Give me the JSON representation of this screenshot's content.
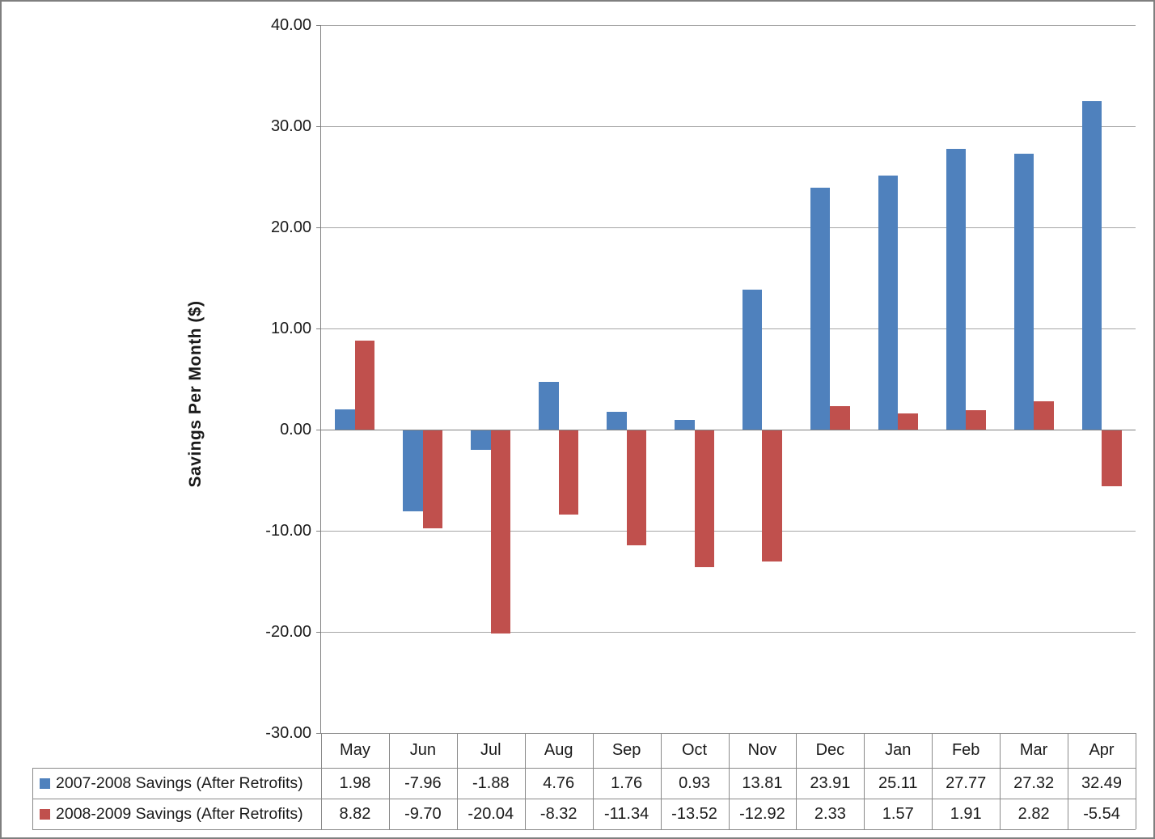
{
  "window": {
    "background": "#FFFFFF",
    "frame_color": "#7F7F7F"
  },
  "chart_data": {
    "type": "bar",
    "title": "",
    "xlabel": "",
    "ylabel": "Savings Per Month ($)",
    "categories": [
      "May",
      "Jun",
      "Jul",
      "Aug",
      "Sep",
      "Oct",
      "Nov",
      "Dec",
      "Jan",
      "Feb",
      "Mar",
      "Apr"
    ],
    "series": [
      {
        "name": "2007-2008 Savings (After Retrofits)",
        "color": "#4F81BD",
        "values": [
          1.98,
          -7.96,
          -1.88,
          4.76,
          1.76,
          0.93,
          13.81,
          23.91,
          25.11,
          27.77,
          27.32,
          32.49
        ]
      },
      {
        "name": "2008-2009 Savings (After Retrofits)",
        "color": "#C0504D",
        "values": [
          8.82,
          -9.7,
          -20.04,
          -8.32,
          -11.34,
          -13.52,
          -12.92,
          2.33,
          1.57,
          1.91,
          2.82,
          -5.54
        ]
      }
    ],
    "ylim": [
      -30,
      40
    ],
    "ytick_step": 10,
    "ytick_labels": [
      "40.00",
      "30.00",
      "20.00",
      "10.00",
      "0.00",
      "-10.00",
      "-20.00",
      "-30.00"
    ],
    "value_decimals": 2,
    "grid": true,
    "legend_position": "data-table-left",
    "data_table": true
  },
  "styles": {
    "gridline_color": "#A6A6A6",
    "axis_color": "#808080",
    "table_border_color": "#8A8A8A",
    "text_color": "#1A1A1A",
    "plot_background": "#FFFFFF"
  }
}
